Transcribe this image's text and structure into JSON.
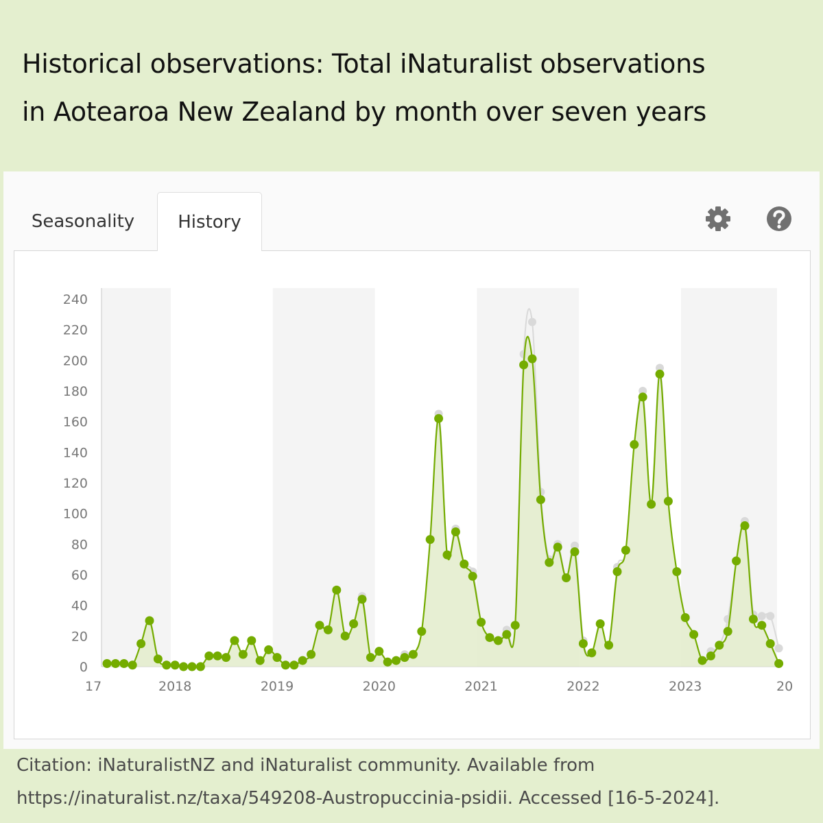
{
  "title_lines": [
    "Historical observations: Total iNaturalist observations",
    "in Aotearoa New Zealand by month over seven years"
  ],
  "tabs": [
    {
      "label": "Seasonality",
      "active": false
    },
    {
      "label": "History",
      "active": true
    }
  ],
  "icons": {
    "settings": "gear-icon",
    "help": "help-icon"
  },
  "colors": {
    "primary": "#74ac00",
    "fill": "#e3eccb",
    "secondary": "#d9d9d9",
    "band": "#f4f4f4",
    "frame": "#e4efcf"
  },
  "citation_lines": [
    "Citation: iNaturalistNZ and iNaturalist community. Available from",
    "https://inaturalist.nz/taxa/549208-Austropuccinia-psidii. Accessed [16-5-2024]."
  ],
  "chart_data": {
    "type": "line",
    "x_start": "2017-05",
    "x_labels": [
      "17",
      "2018",
      "2019",
      "2020",
      "2021",
      "2022",
      "2023",
      "20"
    ],
    "y_ticks": [
      0,
      20,
      40,
      60,
      80,
      100,
      120,
      140,
      160,
      180,
      200,
      220,
      240
    ],
    "ylim": [
      0,
      240
    ],
    "shaded_years": [
      "2017",
      "2019",
      "2021",
      "2023"
    ],
    "series": [
      {
        "role": "research-grade",
        "values": [
          2,
          2,
          2,
          1,
          15,
          30,
          5,
          1,
          1,
          0,
          0,
          0,
          7,
          7,
          6,
          17,
          8,
          17,
          4,
          11,
          6,
          1,
          1,
          4,
          8,
          27,
          24,
          50,
          20,
          28,
          44,
          6,
          10,
          3,
          4,
          6,
          8,
          23,
          83,
          162,
          73,
          88,
          67,
          59,
          29,
          19,
          17,
          21,
          27,
          197,
          201,
          109,
          68,
          78,
          58,
          75,
          15,
          9,
          28,
          14,
          62,
          76,
          145,
          176,
          106,
          191,
          108,
          62,
          32,
          21,
          4,
          7,
          14,
          23,
          69,
          92,
          31,
          27,
          15,
          2
        ]
      },
      {
        "role": "total",
        "values": [
          2,
          2,
          2,
          1,
          15,
          30,
          5,
          1,
          1,
          0,
          0,
          0,
          7,
          7,
          6,
          17,
          8,
          17,
          4,
          11,
          6,
          1,
          1,
          4,
          8,
          27,
          24,
          50,
          20,
          28,
          46,
          6,
          10,
          3,
          4,
          8,
          8,
          23,
          83,
          165,
          73,
          90,
          67,
          62,
          29,
          19,
          17,
          24,
          27,
          204,
          225,
          114,
          70,
          80,
          58,
          79,
          17,
          9,
          28,
          14,
          65,
          76,
          145,
          180,
          106,
          195,
          108,
          62,
          32,
          21,
          4,
          10,
          14,
          31,
          69,
          95,
          34,
          33,
          33,
          12
        ]
      }
    ]
  }
}
